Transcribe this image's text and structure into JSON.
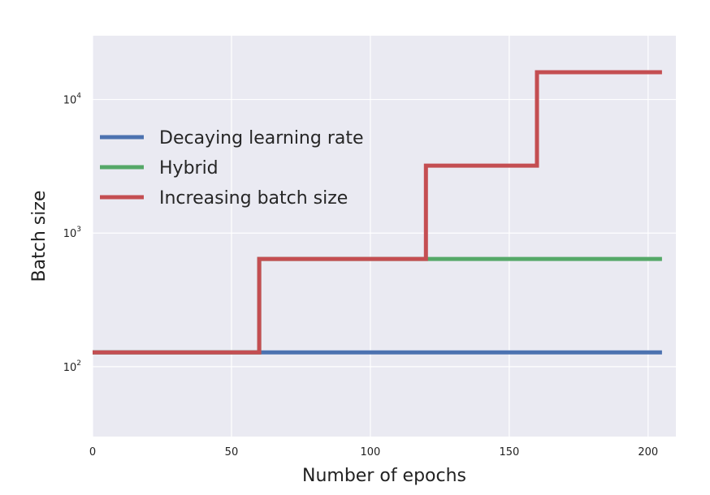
{
  "chart_data": {
    "type": "line",
    "xlabel": "Number of epochs",
    "ylabel": "Batch size",
    "xlim": [
      0,
      210
    ],
    "ylim": [
      30,
      30000
    ],
    "yscale": "log",
    "grid": true,
    "legend_position": "upper-left",
    "x_ticks": [
      {
        "value": 0,
        "label": "0"
      },
      {
        "value": 50,
        "label": "50"
      },
      {
        "value": 100,
        "label": "100"
      },
      {
        "value": 150,
        "label": "150"
      },
      {
        "value": 200,
        "label": "200"
      }
    ],
    "y_ticks": [
      {
        "value": 100,
        "base": "10",
        "exp": "2"
      },
      {
        "value": 1000,
        "base": "10",
        "exp": "3"
      },
      {
        "value": 10000,
        "base": "10",
        "exp": "4"
      }
    ],
    "series": [
      {
        "name": "Decaying learning rate",
        "color": "#4c72b0",
        "x": [
          0,
          60,
          120,
          160,
          205
        ],
        "y": [
          128,
          128,
          128,
          128,
          128
        ]
      },
      {
        "name": "Hybrid",
        "color": "#55a868",
        "x": [
          0,
          60,
          60,
          120,
          205
        ],
        "y": [
          128,
          128,
          640,
          640,
          640
        ]
      },
      {
        "name": "Increasing batch size",
        "color": "#c44e52",
        "x": [
          0,
          60,
          60,
          120,
          120,
          160,
          160,
          205
        ],
        "y": [
          128,
          128,
          640,
          640,
          3200,
          3200,
          16000,
          16000
        ]
      }
    ]
  }
}
